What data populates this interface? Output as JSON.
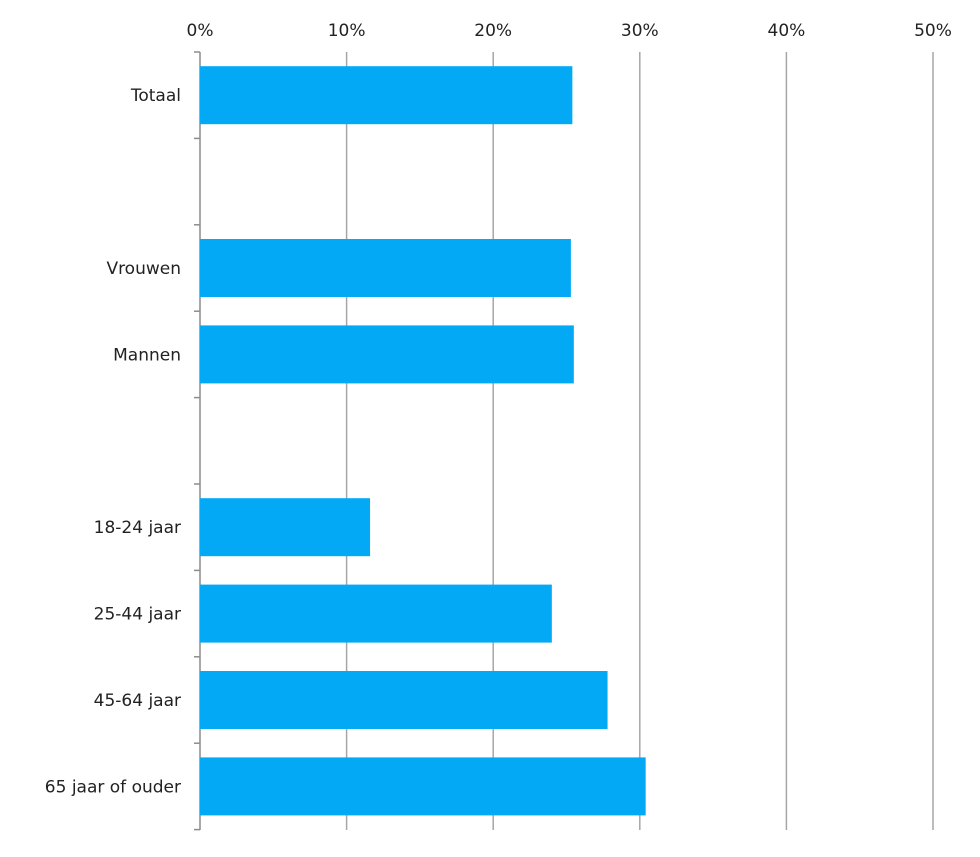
{
  "chart_data": {
    "type": "bar",
    "orientation": "horizontal",
    "categories": [
      "Totaal",
      "",
      "Vrouwen",
      "Mannen",
      "",
      "18-24 jaar",
      "25-44 jaar",
      "45-64 jaar",
      "65 jaar of ouder"
    ],
    "values": [
      25.4,
      null,
      25.3,
      25.5,
      null,
      11.6,
      24.0,
      27.8,
      30.4
    ],
    "xlim": [
      0,
      50
    ],
    "x_ticks": [
      0,
      10,
      20,
      30,
      40,
      50
    ],
    "x_tick_labels": [
      "0%",
      "10%",
      "20%",
      "30%",
      "40%",
      "50%"
    ],
    "x_axis_position": "top",
    "grid": true,
    "legend": "none",
    "title": "",
    "xlabel": "",
    "ylabel": "",
    "colors": {
      "bar": "#03a9f4",
      "grid": "#a6a6a6",
      "axis": "#8c8c8c"
    }
  }
}
